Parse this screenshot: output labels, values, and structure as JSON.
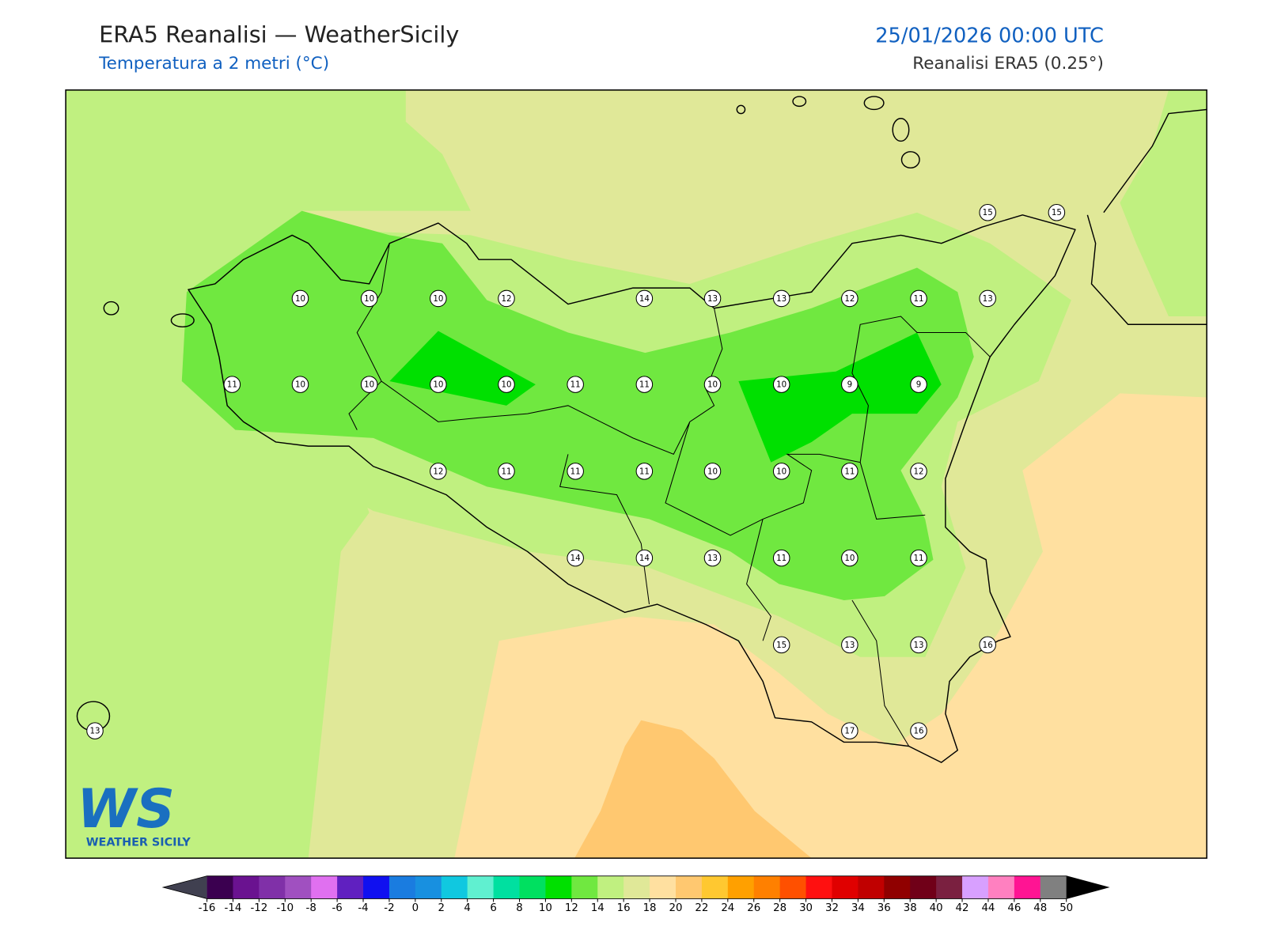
{
  "header": {
    "title": "ERA5 Reanalisi — WeatherSicily",
    "subtitle": "Temperatura a 2 metri (°C)",
    "datetime": "25/01/2026 00:00 UTC",
    "source": "Reanalisi ERA5 (0.25°)"
  },
  "logo": {
    "mark": "WS",
    "caption": "WEATHER SICILY"
  },
  "stations": [
    10,
    10,
    10,
    12,
    14,
    13,
    13,
    12,
    11,
    13,
    15,
    15,
    11,
    10,
    10,
    10,
    10,
    11,
    11,
    10,
    10,
    9,
    9,
    12,
    11,
    11,
    11,
    10,
    10,
    11,
    12,
    14,
    14,
    13,
    11,
    10,
    11,
    15,
    13,
    13,
    16,
    13,
    17,
    16
  ],
  "colorbar": {
    "ticks": [
      -16,
      -14,
      -12,
      -10,
      -8,
      -6,
      -4,
      -2,
      0,
      2,
      4,
      6,
      8,
      10,
      12,
      14,
      16,
      18,
      20,
      22,
      24,
      26,
      28,
      30,
      32,
      34,
      36,
      38,
      40,
      42,
      44,
      46,
      48,
      50
    ],
    "colors": [
      "#3b0050",
      "#6a1290",
      "#8030a8",
      "#a050c0",
      "#e070f0",
      "#6020c0",
      "#1010f0",
      "#1a7ce0",
      "#1890e0",
      "#10c8e0",
      "#60f0d0",
      "#00e0a0",
      "#00e060",
      "#00e000",
      "#70e840",
      "#c0f080",
      "#e0e898",
      "#ffe0a0",
      "#ffc870",
      "#ffc830",
      "#ffa000",
      "#ff8000",
      "#ff5000",
      "#ff1010",
      "#e00000",
      "#c00000",
      "#900000",
      "#700018",
      "#7a2040",
      "#d8a0ff",
      "#ff80c0",
      "#ff1493",
      "#808080",
      "#333333"
    ],
    "extend_colors": [
      "#404050",
      "#000000"
    ]
  }
}
